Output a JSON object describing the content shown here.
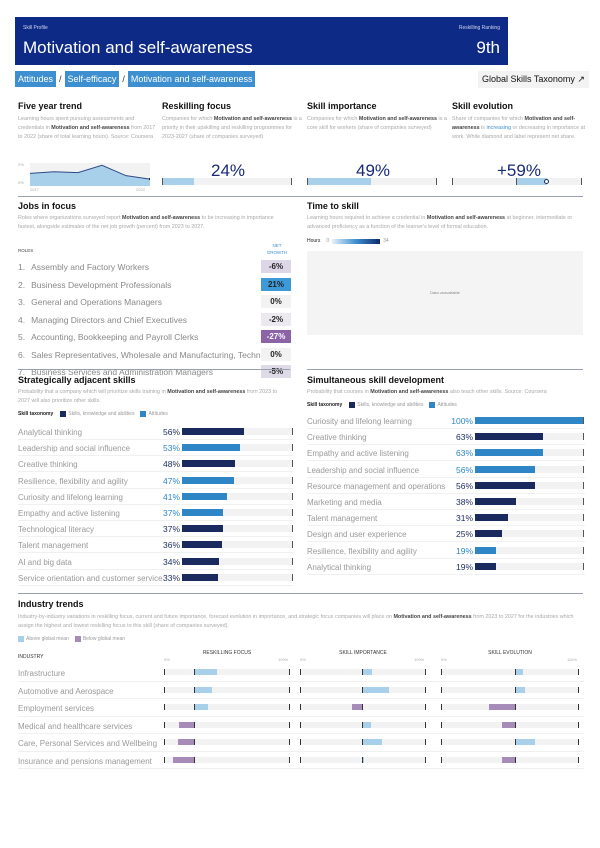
{
  "header": {
    "subtitle_left": "Skill Profile",
    "subtitle_right": "Reskilling Ranking",
    "title": "Motivation and self-awareness",
    "rank": "9th"
  },
  "breadcrumb": [
    "Attitudes",
    "Self-efficacy",
    "Motivation and self-awareness"
  ],
  "breadcrumb_sep": "/",
  "taxonomy_link": "Global Skills Taxonomy ↗",
  "colors": {
    "header_bg": "#0d2a86",
    "accent_blue": "#3d8fd0",
    "skills_navy": "#1b2a5e",
    "attitudes_blue": "#2f86c6",
    "above_mean": "#a9d0ea",
    "below_mean": "#a78bb8"
  },
  "five_year_trend": {
    "title": "Five year trend",
    "desc_pre": "Learning hours spent pursuing assessments and credentials in ",
    "desc_bold": "Motivation and self-awareness",
    "desc_post": " from 2017 to 2022 (share of total learning hours). Source: Coursera",
    "y_top_label": "2%",
    "y_bottom_label": "0%",
    "x_start": "2017",
    "x_end": "2022",
    "series_relative": [
      0.55,
      0.62,
      0.58,
      0.9,
      0.45,
      0.3
    ]
  },
  "reskilling_focus": {
    "title": "Reskilling focus",
    "desc_pre": "Companies for which ",
    "desc_bold": "Motivation and self-awareness",
    "desc_post": " is a priority in their upskilling and reskilling programmes for 2023-2027 (share of companies surveyed)",
    "value_label": "24%",
    "value": 24
  },
  "skill_importance": {
    "title": "Skill importance",
    "desc_pre": "Companies for which ",
    "desc_bold": "Motivation and self-awareness",
    "desc_post": " is a core skill for workers (share of companies surveyed)",
    "value_label": "49%",
    "value": 49
  },
  "skill_evolution": {
    "title": "Skill evolution",
    "desc_pre": "Share of companies for which ",
    "desc_bold": "Motivation and self-awareness",
    "desc_mid": " is ",
    "desc_hl": "increasing",
    "desc_post": " or decreasing in importance at work. White diamond and label represent net share.",
    "value_label": "+59%",
    "value": 59
  },
  "jobs_in_focus": {
    "title": "Jobs in focus",
    "desc_pre": "Roles where organizations surveyed report ",
    "desc_bold": "Motivation and self-awareness",
    "desc_post": " to be increasing in importance fastest, alongside estimates of the net job growth (percent) from 2023 to 2027.",
    "col_roles": "ROLES",
    "col_growth_1": "NET",
    "col_growth_2": "GROWTH",
    "rows": [
      {
        "rank": "1.",
        "name": "Assembly and Factory Workers",
        "growth": "-6%",
        "color": "#dcd6e6"
      },
      {
        "rank": "2.",
        "name": "Business Development Professionals",
        "growth": "21%",
        "color": "#3d9ad6"
      },
      {
        "rank": "3.",
        "name": "General and Operations Managers",
        "growth": "0%",
        "color": "#f2f2f2"
      },
      {
        "rank": "4.",
        "name": "Managing Directors and Chief Executives",
        "growth": "-2%",
        "color": "#ebe8f0"
      },
      {
        "rank": "5.",
        "name": "Accounting, Bookkeeping and Payroll Clerks",
        "growth": "-27%",
        "color": "#8c63a6"
      },
      {
        "rank": "6.",
        "name": "Sales Representatives, Wholesale and Manufacturing, Technical…",
        "growth": "0%",
        "color": "#f2f2f2"
      },
      {
        "rank": "7.",
        "name": "Business Services and Administration Managers",
        "growth": "-5%",
        "color": "#dfdae8"
      }
    ]
  },
  "time_to_skill": {
    "title": "Time to skill",
    "desc_pre": "Learning hours required to achieve a credential in ",
    "desc_bold": "Motivation and self-awareness",
    "desc_post": " at beginner, intermediate or advanced proficiency as a function of the learner's level of formal education.",
    "legend_label": "Hours",
    "legend_min": "0",
    "legend_max": "34",
    "unavailable": "Data unavailable"
  },
  "adjacent": {
    "title": "Strategically adjacent skills",
    "desc_pre": "Probability that a company which will prioritize skills training in ",
    "desc_bold": "Motivation and self-awareness",
    "desc_post": " from 2023 to 2027 will also prioritize other skills.",
    "legend_label": "Skill taxonomy",
    "legend_skills": "Skills, knowledge and abilities",
    "legend_attitudes": "Attitudes",
    "rows": [
      {
        "name": "Analytical thinking",
        "value": 56,
        "label": "56%",
        "type": "skills"
      },
      {
        "name": "Leadership and social influence",
        "value": 53,
        "label": "53%",
        "type": "attitudes"
      },
      {
        "name": "Creative thinking",
        "value": 48,
        "label": "48%",
        "type": "skills"
      },
      {
        "name": "Resilience, flexibility and agility",
        "value": 47,
        "label": "47%",
        "type": "attitudes"
      },
      {
        "name": "Curiosity and lifelong learning",
        "value": 41,
        "label": "41%",
        "type": "attitudes"
      },
      {
        "name": "Empathy and active listening",
        "value": 37,
        "label": "37%",
        "type": "attitudes"
      },
      {
        "name": "Technological literacy",
        "value": 37,
        "label": "37%",
        "type": "skills"
      },
      {
        "name": "Talent management",
        "value": 36,
        "label": "36%",
        "type": "skills"
      },
      {
        "name": "AI and big data",
        "value": 34,
        "label": "34%",
        "type": "skills"
      },
      {
        "name": "Service orientation and customer service",
        "value": 33,
        "label": "33%",
        "type": "skills"
      }
    ]
  },
  "simultaneous": {
    "title": "Simultaneous skill development",
    "desc_pre": "Probability that courses in ",
    "desc_bold": "Motivation and self-awareness",
    "desc_post": " also teach other skills. Source: Coursera",
    "legend_label": "Skill taxonomy",
    "legend_skills": "Skills, knowledge and abilities",
    "legend_attitudes": "Attitudes",
    "rows": [
      {
        "name": "Curiosity and lifelong learning",
        "value": 100,
        "label": "100%",
        "type": "attitudes"
      },
      {
        "name": "Creative thinking",
        "value": 63,
        "label": "63%",
        "type": "skills"
      },
      {
        "name": "Empathy and active listening",
        "value": 63,
        "label": "63%",
        "type": "attitudes"
      },
      {
        "name": "Leadership and social influence",
        "value": 56,
        "label": "56%",
        "type": "attitudes"
      },
      {
        "name": "Resource management and operations",
        "value": 56,
        "label": "56%",
        "type": "skills"
      },
      {
        "name": "Marketing and media",
        "value": 38,
        "label": "38%",
        "type": "skills"
      },
      {
        "name": "Talent management",
        "value": 31,
        "label": "31%",
        "type": "skills"
      },
      {
        "name": "Design and user experience",
        "value": 25,
        "label": "25%",
        "type": "skills"
      },
      {
        "name": "Resilience, flexibility and agility",
        "value": 19,
        "label": "19%",
        "type": "attitudes"
      },
      {
        "name": "Analytical thinking",
        "value": 19,
        "label": "19%",
        "type": "skills"
      }
    ]
  },
  "industry": {
    "title": "Industry trends",
    "desc_pre": "Industry-by-industry variations in reskilling focus, current and future importance, forecast evolution in importance, and strategic focus companies will place on ",
    "desc_bold": "Motivation and self-awareness",
    "desc_post": " from 2023 to 2027 for the industries which assign the highest and lowest reskilling focus to this skill (share of companies surveyed).",
    "legend_above": "Above global mean",
    "legend_below": "Below global mean",
    "col_industry": "INDUSTRY",
    "columns": [
      {
        "title": "RESKILLING FOCUS",
        "min": "0%",
        "max": "100%",
        "mean": 24
      },
      {
        "title": "SKILL IMPORTANCE",
        "min": "0%",
        "max": "100%",
        "mean": 49
      },
      {
        "title": "SKILL EVOLUTION",
        "min": "0%",
        "max": "110%",
        "mean": 59
      }
    ],
    "rows": [
      {
        "name": "Infrastructure",
        "values": [
          42,
          57,
          65
        ]
      },
      {
        "name": "Automotive and Aerospace",
        "values": [
          38,
          71,
          67
        ]
      },
      {
        "name": "Employment services",
        "values": [
          35,
          41,
          38
        ]
      },
      {
        "name": "Medical and healthcare services",
        "values": [
          12,
          56,
          49
        ]
      },
      {
        "name": "Care, Personal Services and Wellbeing",
        "values": [
          11,
          65,
          75
        ]
      },
      {
        "name": "Insurance and pensions management",
        "values": [
          7,
          51,
          49
        ]
      }
    ]
  }
}
